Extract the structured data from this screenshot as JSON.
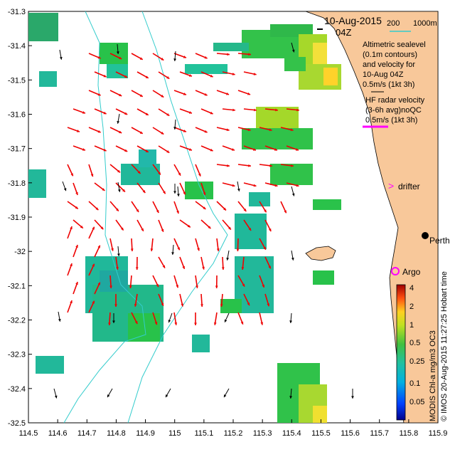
{
  "title": {
    "date": "10-Aug-2015",
    "time": "04Z"
  },
  "bathymetry_legend": {
    "label_200": "200",
    "label_1000": "1000m"
  },
  "altimetry_legend": {
    "lines": [
      "Altimetric sealevel",
      "(0.1m contours)",
      "and velocity for",
      "10-Aug 04Z",
      "0.5m/s (1kt 3h)"
    ]
  },
  "hf_legend": {
    "lines": [
      "HF radar velocity",
      "(3-6h avg)noQC",
      "0.5m/s (1kt 3h)"
    ]
  },
  "markers": {
    "drifter_label": "drifter",
    "argo_label": "Argo",
    "city_label": "Perth"
  },
  "colorbar": {
    "ticks": [
      "4",
      "2",
      "1",
      "0.5",
      "0.25",
      "0.1",
      "0.05"
    ],
    "caption": "MODIS Chl-a mg/m3 OC3"
  },
  "credit": "© IMOS 20-Aug-2015 11:27:25 Hobart time",
  "axes": {
    "x_ticks": [
      "114.5",
      "114.6",
      "114.7",
      "114.8",
      "114.9",
      "115",
      "115.1",
      "115.2",
      "115.3",
      "115.4",
      "115.5",
      "115.6",
      "115.7",
      "115.8",
      "115.9"
    ],
    "y_ticks": [
      "-31.3",
      "-31.4",
      "-31.5",
      "-31.6",
      "-31.7",
      "-31.8",
      "-31.9",
      "-32",
      "-32.1",
      "-32.2",
      "-32.3",
      "-32.4",
      "-32.5"
    ],
    "x_range": [
      114.5,
      115.9
    ],
    "y_range": [
      -32.5,
      -31.3
    ]
  },
  "colors": {
    "land": "#f8c89a",
    "hf_arrow": "#ee0000",
    "alt_arrow": "#000000",
    "bathy": "#33cccc",
    "drifter": "#ff00ff",
    "argo": "#ff00ff"
  }
}
